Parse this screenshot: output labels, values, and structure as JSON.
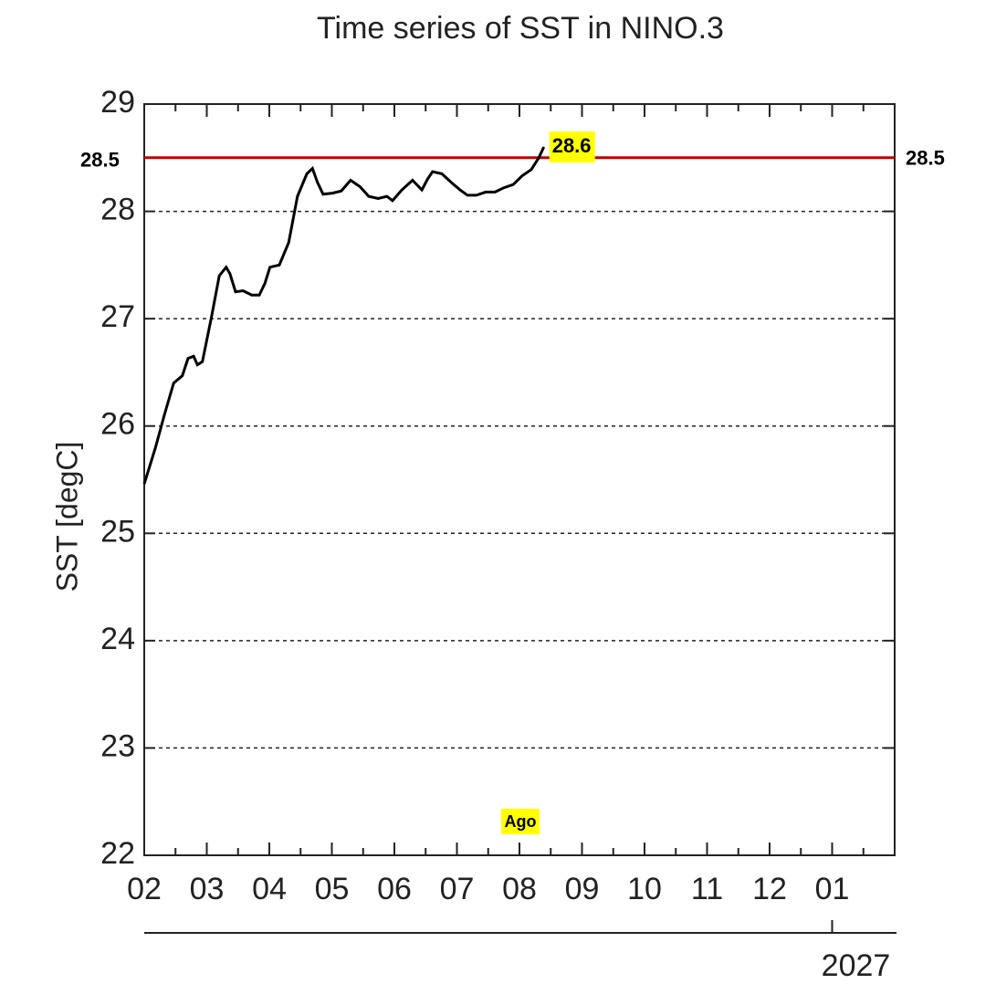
{
  "chart_data": {
    "type": "line",
    "title": "Time series of SST in NINO.3",
    "ylabel": "SST [degC]",
    "x": [
      0,
      0.18,
      0.32,
      0.47,
      0.61,
      0.7,
      0.79,
      0.85,
      0.93,
      1.08,
      1.2,
      1.31,
      1.37,
      1.46,
      1.58,
      1.72,
      1.84,
      1.93,
      2.01,
      2.16,
      2.31,
      2.45,
      2.6,
      2.69,
      2.77,
      2.86,
      3.01,
      3.15,
      3.3,
      3.45,
      3.59,
      3.74,
      3.88,
      3.97,
      4.12,
      4.29,
      4.44,
      4.53,
      4.61,
      4.76,
      4.91,
      5.05,
      5.17,
      5.31,
      5.46,
      5.61,
      5.75,
      5.9,
      6.04,
      6.19,
      6.31,
      6.39
    ],
    "series": [
      {
        "name": "SST",
        "color": "#000000",
        "values": [
          25.46,
          25.8,
          26.1,
          26.4,
          26.47,
          26.63,
          26.65,
          26.57,
          26.6,
          27.03,
          27.4,
          27.48,
          27.42,
          27.25,
          27.26,
          27.22,
          27.22,
          27.33,
          27.48,
          27.5,
          27.71,
          28.14,
          28.35,
          28.4,
          28.27,
          28.16,
          28.17,
          28.19,
          28.29,
          28.23,
          28.14,
          28.12,
          28.14,
          28.1,
          28.2,
          28.29,
          28.2,
          28.3,
          28.37,
          28.35,
          28.27,
          28.2,
          28.15,
          28.15,
          28.18,
          28.18,
          28.22,
          28.25,
          28.33,
          28.39,
          28.5,
          28.6
        ]
      }
    ],
    "xlim": [
      0,
      12
    ],
    "xticks": [
      {
        "value": 0,
        "label": "02"
      },
      {
        "value": 1,
        "label": "03"
      },
      {
        "value": 2,
        "label": "04"
      },
      {
        "value": 3,
        "label": "05"
      },
      {
        "value": 4,
        "label": "06"
      },
      {
        "value": 5,
        "label": "07"
      },
      {
        "value": 6,
        "label": "08"
      },
      {
        "value": 7,
        "label": "09"
      },
      {
        "value": 8,
        "label": "10"
      },
      {
        "value": 9,
        "label": "11"
      },
      {
        "value": 10,
        "label": "12"
      },
      {
        "value": 11,
        "label": "01"
      }
    ],
    "xticks2": [
      {
        "value": 11,
        "label": "2027"
      }
    ],
    "ylim": [
      22,
      29
    ],
    "yticks": [
      22,
      23,
      24,
      25,
      26,
      27,
      28,
      29
    ],
    "grid": true,
    "hline": {
      "value": 28.5,
      "color": "#c00000"
    },
    "annotations": [
      {
        "text": "Ago",
        "x": 6
      }
    ]
  }
}
